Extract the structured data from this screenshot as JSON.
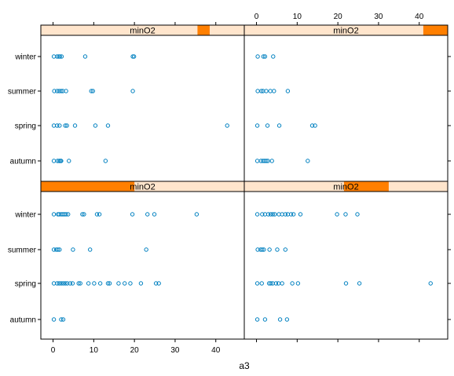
{
  "chart_data": {
    "type": "scatter",
    "xlabel": "a3",
    "xlim": [
      -3,
      47
    ],
    "x_ticks": [
      0,
      10,
      20,
      30,
      40
    ],
    "categories": [
      "autumn",
      "spring",
      "summer",
      "winter"
    ],
    "colors": {
      "point": "#0080c0",
      "strip_bg": "#ffe5cc",
      "strip_fill": "#ff7f00",
      "border": "#000000"
    },
    "panels": [
      {
        "position": "top-left",
        "strip_label": "minO2",
        "strip_range": [
          0.77,
          0.83
        ],
        "series": [
          {
            "category": "winter",
            "x": [
              0.2,
              1.0,
              1.4,
              1.7,
              2.1,
              7.9,
              19.6,
              19.9
            ]
          },
          {
            "category": "summer",
            "x": [
              0.3,
              1.0,
              1.5,
              2.0,
              2.4,
              3.2,
              9.4,
              9.8,
              19.6
            ]
          },
          {
            "category": "spring",
            "x": [
              0.2,
              1.0,
              1.6,
              3.0,
              3.4,
              5.4,
              10.4,
              13.5,
              42.8
            ]
          },
          {
            "category": "autumn",
            "x": [
              0.2,
              1.1,
              1.5,
              1.8,
              2.0,
              3.9,
              12.9
            ]
          }
        ]
      },
      {
        "position": "top-right",
        "strip_label": "minO2",
        "strip_range": [
          0.88,
          1.0
        ],
        "series": [
          {
            "category": "winter",
            "x": [
              0.3,
              1.7,
              2.1,
              4.1
            ]
          },
          {
            "category": "summer",
            "x": [
              0.3,
              1.2,
              1.6,
              2.4,
              3.4,
              4.3,
              7.7
            ]
          },
          {
            "category": "spring",
            "x": [
              0.2,
              2.7,
              5.6,
              13.7,
              14.4
            ]
          },
          {
            "category": "autumn",
            "x": [
              0.2,
              1.1,
              1.6,
              2.0,
              2.4,
              2.8,
              3.8,
              12.6
            ]
          }
        ]
      },
      {
        "position": "bottom-left",
        "strip_label": "minO2",
        "strip_range": [
          0.0,
          0.46
        ],
        "series": [
          {
            "category": "winter",
            "x": [
              0.2,
              1.2,
              1.5,
              2.0,
              2.4,
              2.8,
              3.2,
              3.7,
              7.2,
              7.6,
              10.8,
              11.4,
              19.5,
              23.2,
              24.9,
              35.3
            ]
          },
          {
            "category": "summer",
            "x": [
              0.2,
              0.8,
              1.2,
              1.6,
              4.9,
              9.1,
              22.9
            ]
          },
          {
            "category": "spring",
            "x": [
              0.2,
              1.0,
              1.5,
              2.0,
              2.5,
              3.0,
              3.5,
              4.2,
              4.8,
              6.3,
              6.7,
              8.7,
              10.1,
              11.6,
              13.5,
              13.9,
              16.1,
              17.6,
              19.0,
              21.6,
              25.3,
              26.0
            ]
          },
          {
            "category": "autumn",
            "x": [
              0.2,
              2.0,
              2.5
            ]
          }
        ]
      },
      {
        "position": "bottom-right",
        "strip_label": "minO2",
        "strip_range": [
          0.49,
          0.71
        ],
        "series": [
          {
            "category": "winter",
            "x": [
              0.2,
              1.4,
              2.1,
              2.9,
              3.5,
              4.0,
              4.5,
              5.5,
              6.3,
              7.1,
              7.7,
              8.5,
              9.1,
              10.8,
              19.8,
              21.9,
              24.8
            ]
          },
          {
            "category": "summer",
            "x": [
              0.3,
              1.0,
              1.4,
              1.8,
              3.2,
              5.1,
              7.1
            ]
          },
          {
            "category": "spring",
            "x": [
              0.2,
              1.3,
              3.1,
              3.5,
              4.0,
              4.8,
              5.4,
              6.3,
              8.8,
              10.2,
              22.0,
              25.3,
              42.8
            ]
          },
          {
            "category": "autumn",
            "x": [
              0.2,
              2.1,
              5.8,
              7.5
            ]
          }
        ]
      }
    ]
  }
}
